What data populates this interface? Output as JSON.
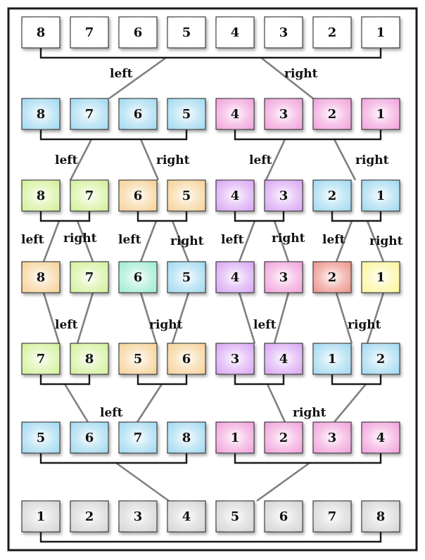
{
  "colors": {
    "white": "#ffffff",
    "gray": "#d8d8d8",
    "blue": "#a8dcf2",
    "pink": "#f3a8de",
    "green": "#d6f2a0",
    "orange": "#f7d59e",
    "purple": "#dcacf5",
    "teal": "#a4eed4",
    "red": "#ef9a92",
    "yellow": "#fbf6a2"
  },
  "rows": [
    {
      "numbers": [
        "8",
        "7",
        "6",
        "5",
        "4",
        "3",
        "2",
        "1"
      ],
      "colors": [
        "white",
        "white",
        "white",
        "white",
        "white",
        "white",
        "white",
        "white"
      ]
    },
    {
      "numbers": [
        "8",
        "7",
        "6",
        "5",
        "4",
        "3",
        "2",
        "1"
      ],
      "colors": [
        "blue",
        "blue",
        "blue",
        "blue",
        "pink",
        "pink",
        "pink",
        "pink"
      ]
    },
    {
      "numbers": [
        "8",
        "7",
        "6",
        "5",
        "4",
        "3",
        "2",
        "1"
      ],
      "colors": [
        "green",
        "green",
        "orange",
        "orange",
        "purple",
        "purple",
        "blue",
        "blue"
      ]
    },
    {
      "numbers": [
        "8",
        "7",
        "6",
        "5",
        "4",
        "3",
        "2",
        "1"
      ],
      "colors": [
        "orange",
        "green",
        "teal",
        "blue",
        "purple",
        "pink",
        "red",
        "yellow"
      ]
    },
    {
      "numbers": [
        "7",
        "8",
        "5",
        "6",
        "3",
        "4",
        "1",
        "2"
      ],
      "colors": [
        "green",
        "green",
        "orange",
        "orange",
        "purple",
        "purple",
        "blue",
        "blue"
      ]
    },
    {
      "numbers": [
        "5",
        "6",
        "7",
        "8",
        "1",
        "2",
        "3",
        "4"
      ],
      "colors": [
        "blue",
        "blue",
        "blue",
        "blue",
        "pink",
        "pink",
        "pink",
        "pink"
      ]
    },
    {
      "numbers": [
        "1",
        "2",
        "3",
        "4",
        "5",
        "6",
        "7",
        "8"
      ],
      "colors": [
        "gray",
        "gray",
        "gray",
        "gray",
        "gray",
        "gray",
        "gray",
        "gray"
      ]
    }
  ],
  "labels": {
    "left": "left",
    "right": "right"
  }
}
